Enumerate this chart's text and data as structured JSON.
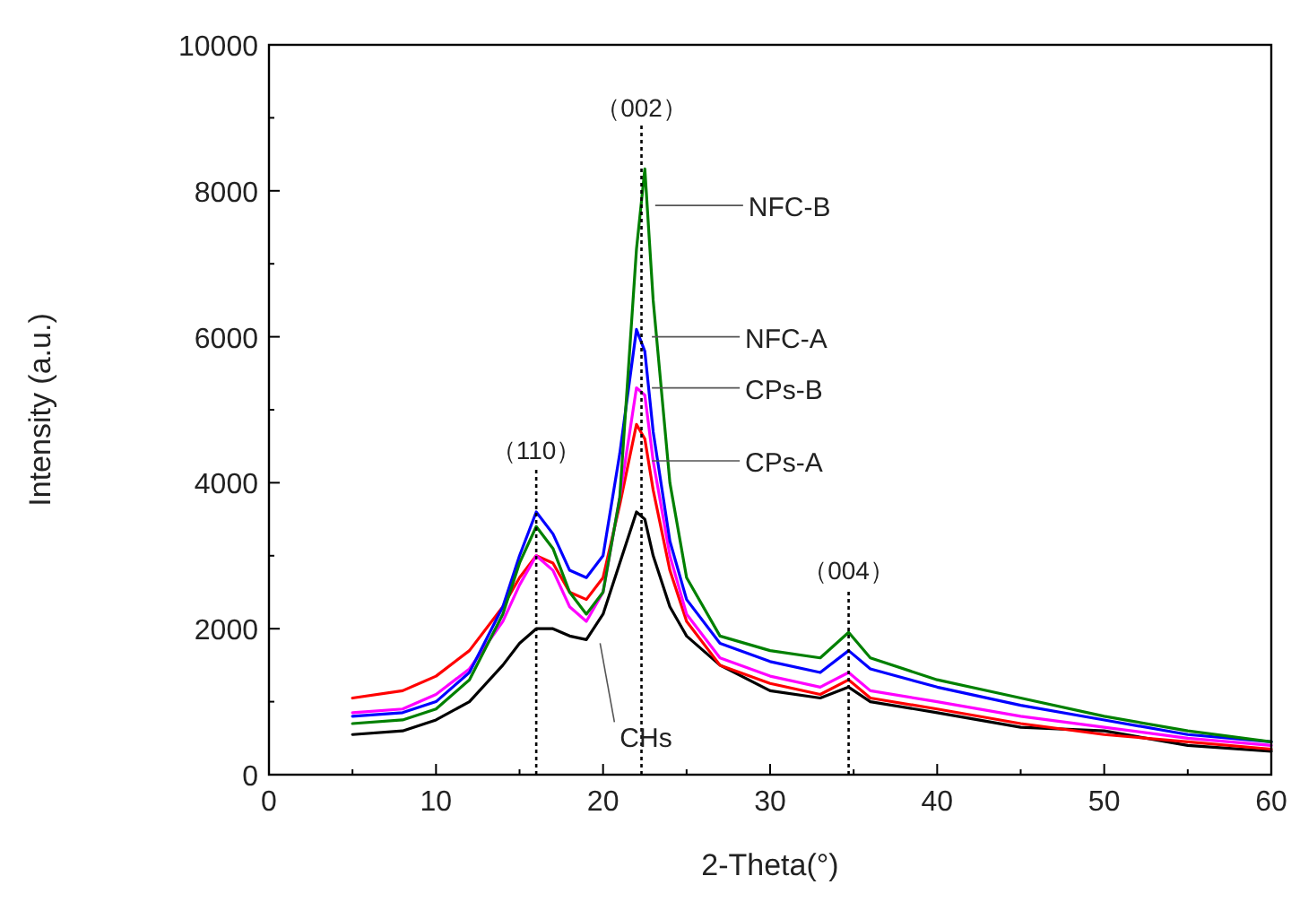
{
  "chart_data": {
    "type": "line",
    "xlabel": "2-Theta(°)",
    "ylabel": "Intensity (a.u.)",
    "x": [
      5,
      8,
      10,
      12,
      14,
      15,
      16,
      17,
      18,
      19,
      20,
      21,
      22,
      22.5,
      23,
      24,
      25,
      27,
      30,
      33,
      34.7,
      36,
      40,
      45,
      50,
      55,
      60
    ],
    "series": [
      {
        "color": "#000000",
        "values": [
          550,
          600,
          750,
          1000,
          1500,
          1800,
          2000,
          2000,
          1900,
          1850,
          2200,
          2900,
          3600,
          3500,
          3000,
          2300,
          1900,
          1500,
          1150,
          1050,
          1200,
          1000,
          850,
          650,
          600,
          400,
          320
        ]
      },
      {
        "color": "#ff0000",
        "values": [
          1050,
          1150,
          1350,
          1700,
          2300,
          2700,
          3000,
          2900,
          2500,
          2400,
          2700,
          3700,
          4800,
          4600,
          3900,
          2800,
          2100,
          1500,
          1250,
          1100,
          1300,
          1050,
          900,
          700,
          550,
          450,
          350
        ]
      },
      {
        "color": "#ff00ff",
        "values": [
          850,
          900,
          1100,
          1450,
          2100,
          2600,
          3000,
          2800,
          2300,
          2100,
          2500,
          3800,
          5300,
          5200,
          4300,
          3000,
          2200,
          1600,
          1350,
          1200,
          1400,
          1150,
          1000,
          800,
          650,
          500,
          400
        ]
      },
      {
        "color": "#0000ff",
        "values": [
          800,
          850,
          1000,
          1400,
          2300,
          3000,
          3600,
          3300,
          2800,
          2700,
          3000,
          4400,
          6100,
          5800,
          4700,
          3200,
          2400,
          1800,
          1550,
          1400,
          1700,
          1450,
          1200,
          950,
          750,
          550,
          450
        ]
      },
      {
        "color": "#008000",
        "values": [
          700,
          750,
          900,
          1300,
          2200,
          2900,
          3400,
          3100,
          2500,
          2200,
          2500,
          3800,
          7200,
          8300,
          6500,
          4000,
          2700,
          1900,
          1700,
          1600,
          1950,
          1600,
          1300,
          1050,
          800,
          600,
          450
        ]
      }
    ],
    "xlim": [
      0,
      60
    ],
    "xticks": [
      0,
      10,
      20,
      30,
      40,
      50,
      60
    ],
    "ylim": [
      0,
      10000
    ],
    "yticks": [
      0,
      2000,
      4000,
      6000,
      8000,
      10000
    ],
    "grid": false,
    "line_style": "solid",
    "marker": "none",
    "ref_lines": [
      {
        "axis": "x",
        "value": 16,
        "label": "（110）",
        "color": "#000000",
        "line_style": "dotted"
      },
      {
        "axis": "x",
        "value": 22.3,
        "label": "（002）",
        "color": "#000000",
        "line_style": "dotted"
      },
      {
        "axis": "x",
        "value": 34.7,
        "label": "（004）",
        "color": "#000000",
        "line_style": "dotted"
      }
    ],
    "annotations": [
      {
        "text": "NFC-B",
        "x": 22.8,
        "y": 7800
      },
      {
        "text": "NFC-A",
        "x": 22.6,
        "y": 6000
      },
      {
        "text": "CPs-B",
        "x": 22.6,
        "y": 5300
      },
      {
        "text": "CPs-A",
        "x": 22.6,
        "y": 4300
      },
      {
        "text": "CHs",
        "x": 19.5,
        "y": 1800
      }
    ]
  }
}
